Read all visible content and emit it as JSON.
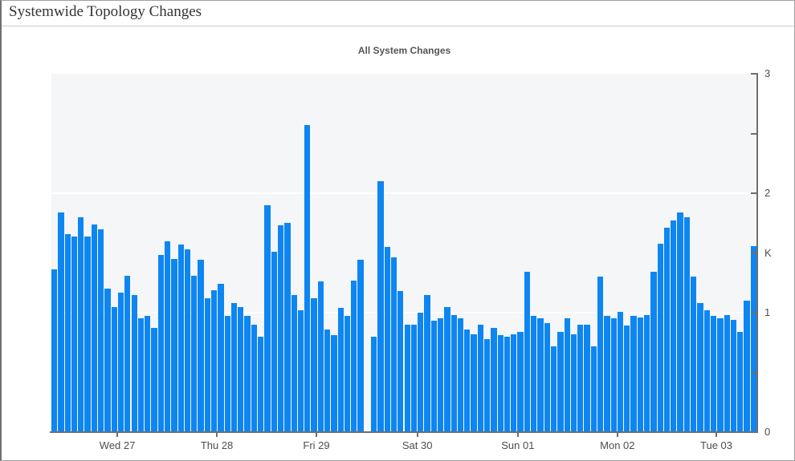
{
  "page": {
    "title": "Systemwide Topology Changes"
  },
  "chart": {
    "title": "All System Changes"
  },
  "colors": {
    "bar": "#0d86f2",
    "plot_background": "#f4f6f8",
    "gridline": "#ffffff",
    "axis": "#6e6e6e",
    "tick_label": "#4d4d4d"
  },
  "chart_data": {
    "type": "bar",
    "title": "All System Changes",
    "xlabel": "",
    "ylabel": "K",
    "unit": "K",
    "ylim": [
      0,
      3
    ],
    "grid": true,
    "legend_position": "none",
    "y_axis_side": "right",
    "y_tick_values": [
      0,
      0.5,
      1,
      1.5,
      2,
      2.5,
      3
    ],
    "y_tick_labels": [
      {
        "value": 3,
        "text": "3"
      },
      {
        "value": 2,
        "text": "2"
      },
      {
        "value": 1.5,
        "text": "K"
      },
      {
        "value": 1,
        "text": "1"
      },
      {
        "value": 0,
        "text": "0"
      }
    ],
    "gridline_values": [
      1,
      2
    ],
    "x_ticks": [
      {
        "label": "Wed 27",
        "index": 9.9
      },
      {
        "label": "Thu 28",
        "index": 24.85
      },
      {
        "label": "Fri 29",
        "index": 39.8
      },
      {
        "label": "Sat 30",
        "index": 54.95
      },
      {
        "label": "Sun 01",
        "index": 70.05
      },
      {
        "label": "Mon 02",
        "index": 85.0
      },
      {
        "label": "Tue 03",
        "index": 99.85
      }
    ],
    "values_unit": "thousands (K)",
    "values": [
      1.36,
      1.84,
      1.66,
      1.64,
      1.8,
      1.64,
      1.74,
      1.7,
      1.2,
      1.05,
      1.17,
      1.31,
      1.15,
      0.95,
      0.97,
      0.87,
      1.48,
      1.6,
      1.45,
      1.57,
      1.53,
      1.31,
      1.44,
      1.12,
      1.19,
      1.24,
      0.97,
      1.08,
      1.05,
      0.97,
      0.9,
      0.8,
      1.9,
      1.51,
      1.73,
      1.75,
      1.15,
      1.02,
      2.57,
      1.12,
      1.26,
      0.86,
      0.81,
      1.04,
      0.97,
      1.27,
      1.44,
      null,
      0.8,
      2.1,
      1.55,
      1.46,
      1.18,
      0.9,
      0.9,
      1.0,
      1.15,
      0.93,
      0.95,
      1.05,
      0.98,
      0.95,
      0.86,
      0.82,
      0.9,
      0.78,
      0.87,
      0.81,
      0.8,
      0.82,
      0.84,
      1.34,
      0.97,
      0.95,
      0.91,
      0.72,
      0.84,
      0.95,
      0.82,
      0.9,
      0.9,
      0.72,
      1.3,
      0.97,
      0.95,
      1.01,
      0.89,
      0.97,
      0.96,
      0.98,
      1.34,
      1.58,
      1.71,
      1.77,
      1.84,
      1.8,
      1.3,
      1.08,
      1.02,
      0.97,
      0.95,
      0.98,
      0.94,
      0.84,
      1.1,
      1.56
    ]
  }
}
